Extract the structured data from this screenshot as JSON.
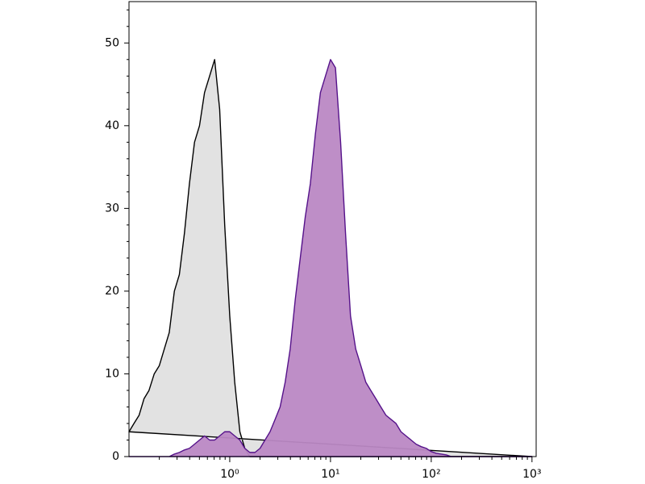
{
  "chart_data": {
    "type": "histogram-overlay",
    "x": [
      0.1,
      0.112,
      0.126,
      0.141,
      0.158,
      0.178,
      0.2,
      0.224,
      0.251,
      0.282,
      0.316,
      0.355,
      0.398,
      0.447,
      0.501,
      0.562,
      0.631,
      0.708,
      0.794,
      0.891,
      1,
      1.12,
      1.26,
      1.41,
      1.58,
      1.78,
      2,
      2.24,
      2.51,
      2.82,
      3.16,
      3.55,
      3.98,
      4.47,
      5.01,
      5.62,
      6.31,
      7.08,
      7.94,
      8.91,
      10,
      11.2,
      12.6,
      14.1,
      15.8,
      17.8,
      20,
      22.4,
      25.1,
      28.2,
      31.6,
      35.5,
      39.8,
      44.7,
      50.1,
      56.2,
      63.1,
      70.8,
      79.4,
      89.1,
      100,
      112,
      126,
      141,
      158,
      178,
      200,
      224,
      251,
      282,
      316,
      355,
      398,
      447,
      501,
      562,
      631,
      708,
      794,
      891,
      1000
    ],
    "series": [
      {
        "color": "#000000",
        "fill": "#e0e0e0",
        "values": [
          3,
          4,
          5,
          7,
          8,
          10,
          11,
          13,
          15,
          20,
          22,
          27,
          33,
          38,
          40,
          44,
          46,
          48,
          42,
          28,
          17,
          9,
          3,
          1,
          0,
          0,
          0,
          0,
          0,
          0,
          0,
          0,
          0,
          0,
          0,
          0,
          0,
          0,
          0,
          0,
          0,
          0,
          0,
          0,
          0,
          0,
          0,
          0,
          0,
          0,
          0,
          0,
          0,
          0,
          0,
          0,
          0,
          0,
          0,
          0,
          0,
          0,
          0,
          0,
          0,
          0,
          0,
          0,
          0,
          0,
          0,
          0,
          0,
          0,
          0,
          0,
          0,
          0,
          0,
          0,
          0
        ]
      },
      {
        "color": "#55128a",
        "fill": "#bb88c4",
        "values": [
          0,
          0,
          0,
          0,
          0,
          0,
          0,
          0,
          0,
          0.3,
          0.5,
          0.8,
          1,
          1.5,
          2,
          2.5,
          2,
          2,
          2.5,
          3,
          3,
          2.5,
          2,
          1,
          0.5,
          0.5,
          1,
          2,
          3,
          4.5,
          6,
          9,
          13,
          19,
          24,
          29,
          33,
          39,
          44,
          46,
          48,
          47,
          38,
          27,
          17,
          13,
          11,
          9,
          8,
          7,
          6,
          5,
          4.5,
          4,
          3,
          2.5,
          2,
          1.5,
          1.2,
          1,
          0.6,
          0.4,
          0.3,
          0.2,
          0,
          0,
          0,
          0,
          0,
          0,
          0,
          0,
          0,
          0,
          0,
          0,
          0,
          0,
          0,
          0,
          0
        ]
      }
    ],
    "xscale": "log",
    "xlim": [
      0.1,
      1100
    ],
    "xticks": [
      {
        "value": 1,
        "label": "10⁰"
      },
      {
        "value": 10,
        "label": "10¹"
      },
      {
        "value": 100,
        "label": "10²"
      },
      {
        "value": 1000,
        "label": "10³"
      }
    ],
    "ylim": [
      0,
      55
    ],
    "yticks": [
      0,
      10,
      20,
      30,
      40,
      50
    ]
  }
}
